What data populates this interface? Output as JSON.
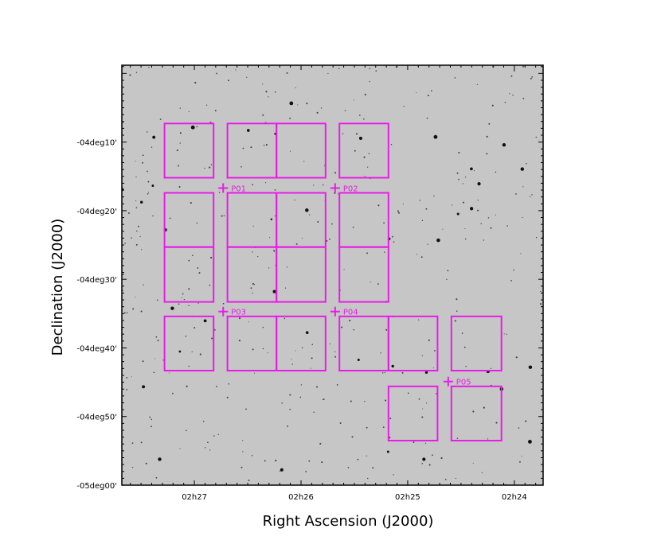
{
  "chart_data": {
    "type": "sky-map",
    "xlabel": "Right Ascension (J2000)",
    "ylabel": "Declination (J2000)",
    "x_units": "minutes of RA",
    "y_units": "arcmin of Dec",
    "xlim": [
      27.68,
      23.73
    ],
    "ylim": [
      -60.0,
      1.2
    ],
    "x_ticks": [
      {
        "value": 27.0,
        "label": "02h27"
      },
      {
        "value": 26.0,
        "label": "02h26"
      },
      {
        "value": 25.0,
        "label": "02h25"
      },
      {
        "value": 24.0,
        "label": "02h24"
      }
    ],
    "y_ticks": [
      {
        "value": -10,
        "label": "-04deg10'"
      },
      {
        "value": -20,
        "label": "-04deg20'"
      },
      {
        "value": -30,
        "label": "-04deg30'"
      },
      {
        "value": -40,
        "label": "-04deg40'"
      },
      {
        "value": -50,
        "label": "-04deg50'"
      },
      {
        "value": -60,
        "label": "-05deg00'"
      }
    ],
    "pointing_color": "#e81ce8",
    "pointings": [
      {
        "label": "P01",
        "ra": 26.73,
        "dec": -16.7
      },
      {
        "label": "P02",
        "ra": 25.68,
        "dec": -16.7
      },
      {
        "label": "P03",
        "ra": 26.73,
        "dec": -34.7
      },
      {
        "label": "P04",
        "ra": 25.68,
        "dec": -34.7
      },
      {
        "label": "P05",
        "ra": 24.62,
        "dec": -44.9
      }
    ],
    "fields": [
      {
        "ra1": 27.28,
        "ra2": 26.82,
        "dec1": -7.3,
        "dec2": -15.2
      },
      {
        "ra1": 26.69,
        "ra2": 26.23,
        "dec1": -7.3,
        "dec2": -15.2
      },
      {
        "ra1": 26.23,
        "ra2": 25.77,
        "dec1": -7.3,
        "dec2": -15.2
      },
      {
        "ra1": 25.64,
        "ra2": 25.18,
        "dec1": -7.3,
        "dec2": -15.2
      },
      {
        "ra1": 27.28,
        "ra2": 26.82,
        "dec1": -17.4,
        "dec2": -25.3
      },
      {
        "ra1": 26.69,
        "ra2": 26.23,
        "dec1": -17.4,
        "dec2": -25.3
      },
      {
        "ra1": 26.23,
        "ra2": 25.77,
        "dec1": -17.4,
        "dec2": -25.3
      },
      {
        "ra1": 25.64,
        "ra2": 25.18,
        "dec1": -17.4,
        "dec2": -25.3
      },
      {
        "ra1": 27.28,
        "ra2": 26.82,
        "dec1": -25.3,
        "dec2": -33.3
      },
      {
        "ra1": 26.69,
        "ra2": 26.23,
        "dec1": -25.3,
        "dec2": -33.3
      },
      {
        "ra1": 26.23,
        "ra2": 25.77,
        "dec1": -25.3,
        "dec2": -33.3
      },
      {
        "ra1": 25.64,
        "ra2": 25.18,
        "dec1": -25.3,
        "dec2": -33.3
      },
      {
        "ra1": 27.28,
        "ra2": 26.82,
        "dec1": -35.4,
        "dec2": -43.3
      },
      {
        "ra1": 26.69,
        "ra2": 26.23,
        "dec1": -35.4,
        "dec2": -43.3
      },
      {
        "ra1": 26.23,
        "ra2": 25.77,
        "dec1": -35.4,
        "dec2": -43.3
      },
      {
        "ra1": 25.64,
        "ra2": 25.18,
        "dec1": -35.4,
        "dec2": -43.3
      },
      {
        "ra1": 25.18,
        "ra2": 24.72,
        "dec1": -35.4,
        "dec2": -43.3
      },
      {
        "ra1": 24.59,
        "ra2": 24.12,
        "dec1": -35.4,
        "dec2": -43.3
      },
      {
        "ra1": 25.18,
        "ra2": 24.72,
        "dec1": -45.6,
        "dec2": -53.5
      },
      {
        "ra1": 24.59,
        "ra2": 24.12,
        "dec1": -45.6,
        "dec2": -53.5
      }
    ]
  }
}
